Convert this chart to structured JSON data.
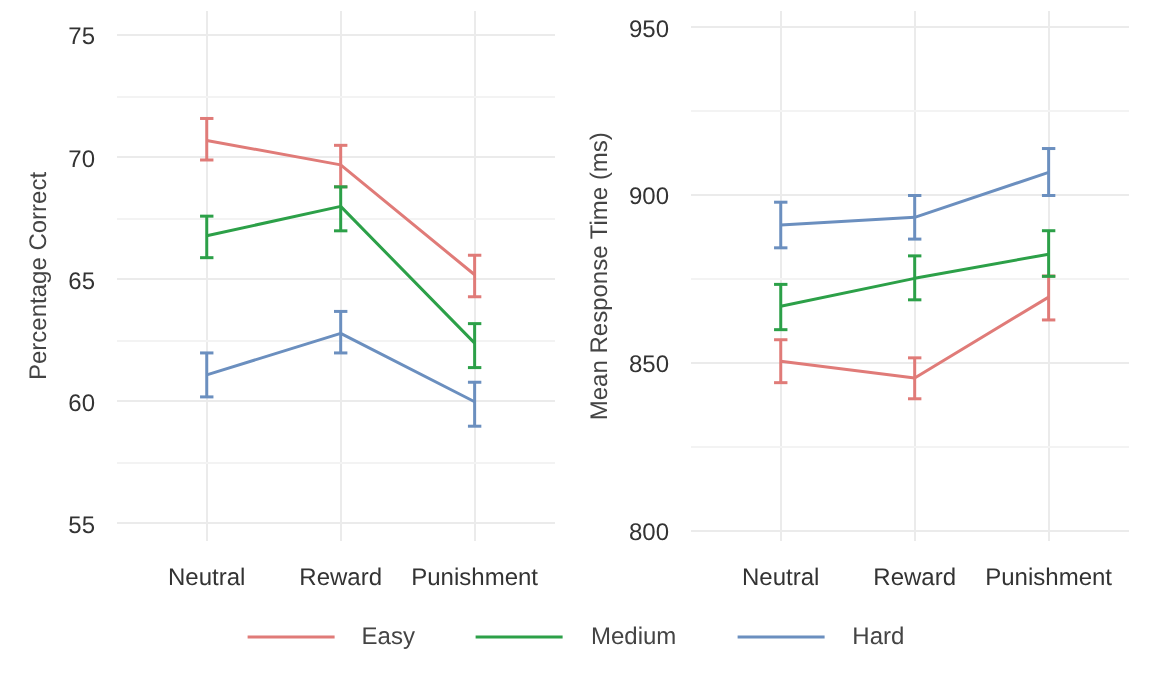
{
  "chart_data": [
    {
      "type": "line",
      "ylabel": "Percentage Correct",
      "categories": [
        "Neutral",
        "Reward",
        "Punishment"
      ],
      "ylim": [
        54.3,
        76
      ],
      "yticks": [
        55,
        60,
        65,
        70,
        75
      ],
      "grid": true,
      "legend": "bottom",
      "series": [
        {
          "name": "Easy",
          "color": "#e07b78",
          "values": [
            70.7,
            69.7,
            65.2
          ],
          "errors": [
            [
              69.9,
              71.6
            ],
            [
              68.8,
              70.5
            ],
            [
              64.3,
              66.0
            ]
          ]
        },
        {
          "name": "Medium",
          "color": "#2ca048",
          "values": [
            66.8,
            68.0,
            62.4
          ],
          "errors": [
            [
              65.9,
              67.6
            ],
            [
              67.0,
              68.8
            ],
            [
              61.4,
              63.2
            ]
          ]
        },
        {
          "name": "Hard",
          "color": "#6b8fbf",
          "values": [
            61.1,
            62.8,
            60.0
          ],
          "errors": [
            [
              60.2,
              62.0
            ],
            [
              62.0,
              63.7
            ],
            [
              59.0,
              60.8
            ]
          ]
        }
      ]
    },
    {
      "type": "line",
      "ylabel": "Mean Response Time (ms)",
      "categories": [
        "Neutral",
        "Reward",
        "Punishment"
      ],
      "ylim": [
        797,
        955
      ],
      "yticks": [
        800,
        850,
        900,
        950
      ],
      "grid": true,
      "legend": "bottom",
      "series": [
        {
          "name": "Easy",
          "color": "#e07b78",
          "values": [
            850.6,
            845.6,
            869.7
          ],
          "errors": [
            [
              844.2,
              857.0
            ],
            [
              839.4,
              851.6
            ],
            [
              862.9,
              876.0
            ]
          ]
        },
        {
          "name": "Medium",
          "color": "#2ca048",
          "values": [
            867.0,
            875.3,
            882.5
          ],
          "errors": [
            [
              860.0,
              873.5
            ],
            [
              868.9,
              882.0
            ],
            [
              875.9,
              889.5
            ]
          ]
        },
        {
          "name": "Hard",
          "color": "#6b8fbf",
          "values": [
            891.2,
            893.5,
            906.9
          ],
          "errors": [
            [
              884.4,
              898.0
            ],
            [
              887.0,
              900.0
            ],
            [
              900.0,
              914.0
            ]
          ]
        }
      ]
    }
  ]
}
